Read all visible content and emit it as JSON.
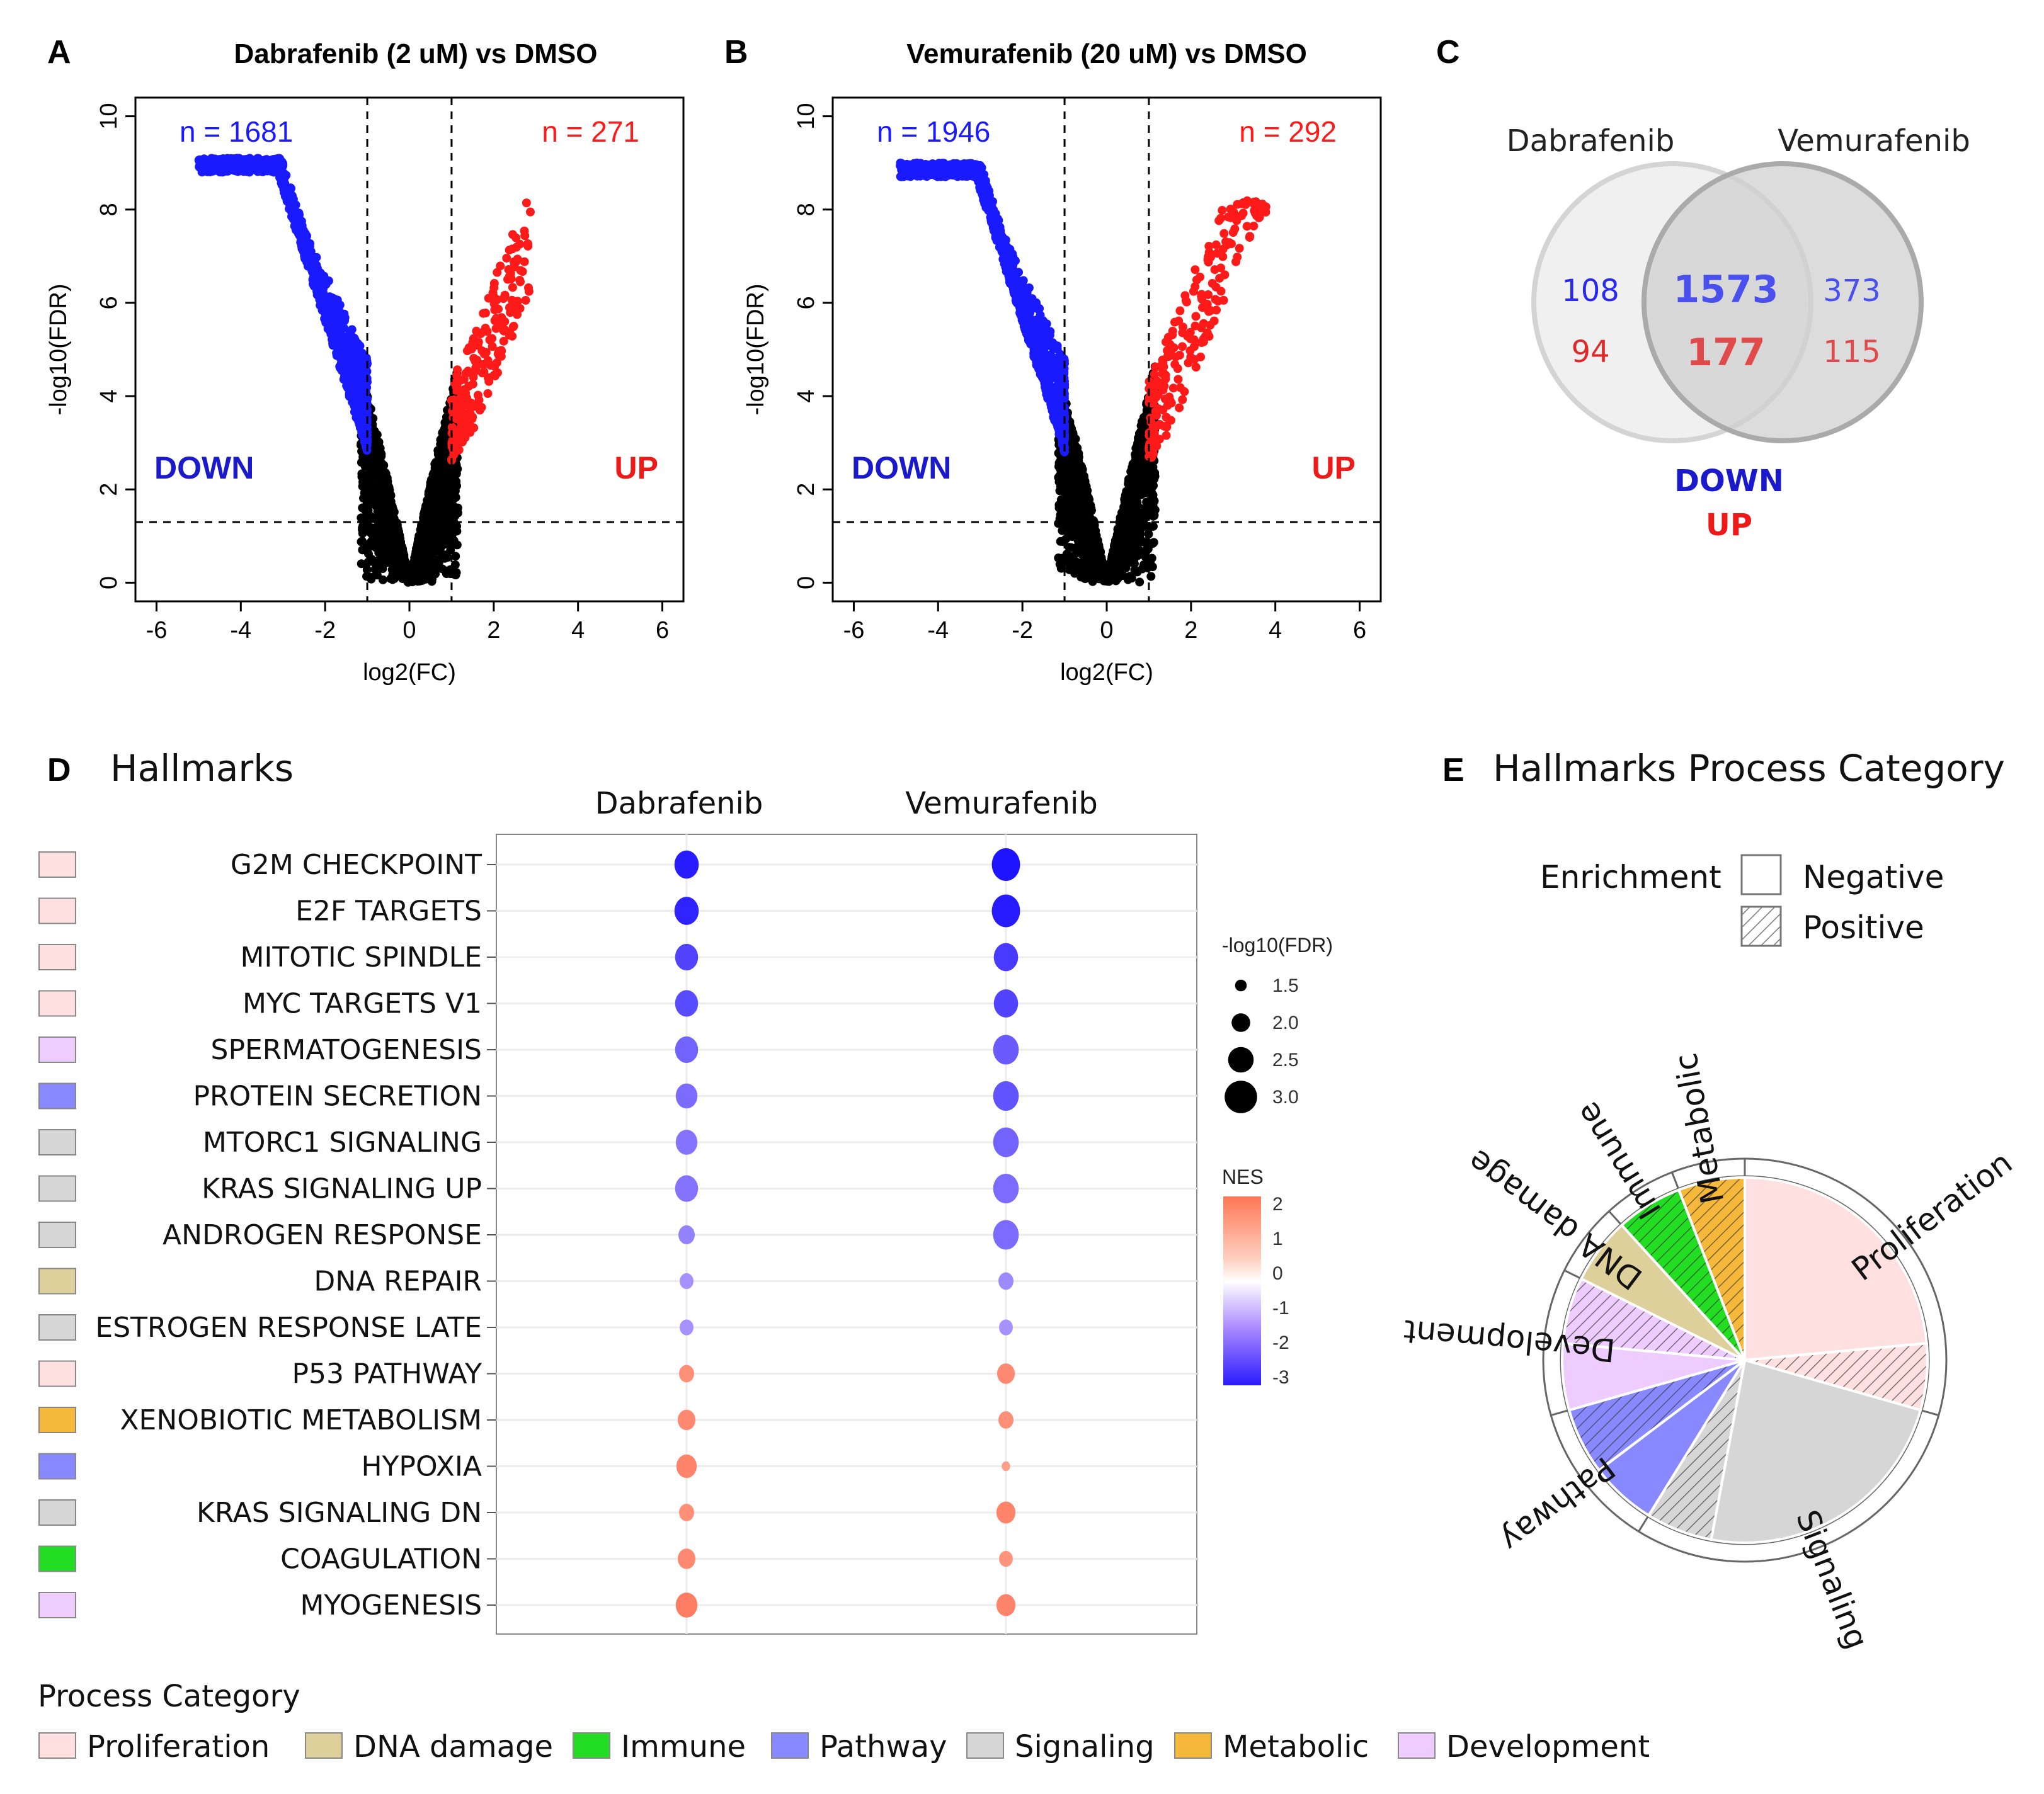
{
  "colors": {
    "down": "#1a1aff",
    "up": "#ff1a1a",
    "proliferation": "#ffe0e0",
    "dna_damage": "#ddd09a",
    "immune": "#22dd22",
    "pathway": "#8888ff",
    "signaling": "#d6d6d6",
    "metabolic": "#f5b83a",
    "development": "#eeccff"
  },
  "panels": {
    "a": {
      "letter": "A",
      "title": "Dabrafenib (2 uM) vs DMSO"
    },
    "b": {
      "letter": "B",
      "title": "Vemurafenib (20 uM) vs DMSO"
    },
    "c": {
      "letter": "C"
    },
    "d": {
      "letter": "D",
      "title": "Hallmarks"
    },
    "e": {
      "letter": "E",
      "title": "Hallmarks Process Category"
    }
  },
  "chart_data": [
    {
      "id": "volcano-dabrafenib",
      "type": "scatter",
      "title": "Dabrafenib (2 uM) vs DMSO",
      "xlabel": "log2(FC)",
      "ylabel": "-log10(FDR)",
      "xlim": [
        -6.5,
        6.5
      ],
      "ylim": [
        -0.4,
        10.4
      ],
      "xticks": [
        "-6",
        "-4",
        "-2",
        "0",
        "2",
        "4",
        "6"
      ],
      "yticks": [
        "0",
        "2",
        "4",
        "6",
        "8",
        "10"
      ],
      "thresholds": {
        "log2fc": [
          -1,
          1
        ],
        "neg_log10_fdr": 1.3
      },
      "n_down_label": "n = 1681",
      "n_up_label": "n = 271",
      "down_label": "DOWN",
      "up_label": "UP",
      "extent": {
        "down_min_x": -5.0,
        "down_max_y": 9.1,
        "up_max_x": 2.9,
        "up_max_y": 8.2
      }
    },
    {
      "id": "volcano-vemurafenib",
      "type": "scatter",
      "title": "Vemurafenib (20 uM) vs DMSO",
      "xlabel": "log2(FC)",
      "ylabel": "-log10(FDR)",
      "xlim": [
        -6.5,
        6.5
      ],
      "ylim": [
        -0.4,
        10.4
      ],
      "xticks": [
        "-6",
        "-4",
        "-2",
        "0",
        "2",
        "4",
        "6"
      ],
      "yticks": [
        "0",
        "2",
        "4",
        "6",
        "8",
        "10"
      ],
      "thresholds": {
        "log2fc": [
          -1,
          1
        ],
        "neg_log10_fdr": 1.3
      },
      "n_down_label": "n = 1946",
      "n_up_label": "n = 292",
      "down_label": "DOWN",
      "up_label": "UP",
      "extent": {
        "down_min_x": -4.9,
        "down_max_y": 9.0,
        "up_max_x": 3.8,
        "up_max_y": 8.2
      }
    },
    {
      "id": "venn",
      "type": "venn",
      "sets": [
        "Dabrafenib",
        "Vemurafenib"
      ],
      "only_a": {
        "down": "108",
        "up": "94"
      },
      "both": {
        "down": "1573",
        "up": "177"
      },
      "only_b": {
        "down": "373",
        "up": "115"
      },
      "legend": {
        "down": "DOWN",
        "up": "UP"
      }
    },
    {
      "id": "hallmarks-dotplot",
      "type": "scatter",
      "columns": [
        "Dabrafenib",
        "Vemurafenib"
      ],
      "rows": [
        {
          "name": "G2M CHECKPOINT",
          "category": "proliferation",
          "nes": [
            -3.0,
            -3.1
          ],
          "fdr": [
            2.5,
            2.8
          ]
        },
        {
          "name": "E2F TARGETS",
          "category": "proliferation",
          "nes": [
            -2.9,
            -3.0
          ],
          "fdr": [
            2.5,
            2.8
          ]
        },
        {
          "name": "MITOTIC SPINDLE",
          "category": "proliferation",
          "nes": [
            -2.5,
            -2.6
          ],
          "fdr": [
            2.4,
            2.5
          ]
        },
        {
          "name": "MYC TARGETS V1",
          "category": "proliferation",
          "nes": [
            -2.4,
            -2.5
          ],
          "fdr": [
            2.4,
            2.5
          ]
        },
        {
          "name": "SPERMATOGENESIS",
          "category": "development",
          "nes": [
            -2.1,
            -2.2
          ],
          "fdr": [
            2.4,
            2.6
          ]
        },
        {
          "name": "PROTEIN SECRETION",
          "category": "pathway",
          "nes": [
            -2.0,
            -2.3
          ],
          "fdr": [
            2.3,
            2.6
          ]
        },
        {
          "name": "MTORC1 SIGNALING",
          "category": "signaling",
          "nes": [
            -1.9,
            -2.1
          ],
          "fdr": [
            2.3,
            2.6
          ]
        },
        {
          "name": "KRAS SIGNALING UP",
          "category": "signaling",
          "nes": [
            -1.9,
            -2.0
          ],
          "fdr": [
            2.4,
            2.6
          ]
        },
        {
          "name": "ANDROGEN RESPONSE",
          "category": "signaling",
          "nes": [
            -1.7,
            -2.0
          ],
          "fdr": [
            1.9,
            2.6
          ]
        },
        {
          "name": "DNA REPAIR",
          "category": "dna_damage",
          "nes": [
            -1.5,
            -1.6
          ],
          "fdr": [
            1.7,
            1.8
          ]
        },
        {
          "name": "ESTROGEN RESPONSE LATE",
          "category": "signaling",
          "nes": [
            -1.5,
            -1.5
          ],
          "fdr": [
            1.7,
            1.7
          ]
        },
        {
          "name": "P53 PATHWAY",
          "category": "proliferation",
          "nes": [
            1.6,
            1.7
          ],
          "fdr": [
            1.8,
            2.0
          ]
        },
        {
          "name": "XENOBIOTIC METABOLISM",
          "category": "metabolic",
          "nes": [
            1.7,
            1.6
          ],
          "fdr": [
            2.0,
            1.8
          ]
        },
        {
          "name": "HYPOXIA",
          "category": "pathway",
          "nes": [
            1.8,
            1.3
          ],
          "fdr": [
            2.2,
            1.3
          ]
        },
        {
          "name": "KRAS SIGNALING DN",
          "category": "signaling",
          "nes": [
            1.6,
            1.8
          ],
          "fdr": [
            1.8,
            2.1
          ]
        },
        {
          "name": "COAGULATION",
          "category": "immune",
          "nes": [
            1.7,
            1.5
          ],
          "fdr": [
            2.0,
            1.7
          ]
        },
        {
          "name": "MYOGENESIS",
          "category": "development",
          "nes": [
            1.9,
            1.8
          ],
          "fdr": [
            2.3,
            2.1
          ]
        }
      ],
      "size_legend": {
        "title": "-log10(FDR)",
        "values": [
          "1.5",
          "2.0",
          "2.5",
          "3.0"
        ]
      },
      "color_legend": {
        "title": "NES",
        "ticks": [
          "2",
          "1",
          "0",
          "-1",
          "-2",
          "-3"
        ]
      }
    },
    {
      "id": "process-category-pie",
      "type": "pie",
      "slices": [
        {
          "category": "proliferation",
          "enrichment": "negative",
          "value": 4
        },
        {
          "category": "proliferation",
          "enrichment": "positive",
          "value": 1
        },
        {
          "category": "signaling",
          "enrichment": "negative",
          "value": 4
        },
        {
          "category": "signaling",
          "enrichment": "positive",
          "value": 1
        },
        {
          "category": "pathway",
          "enrichment": "negative",
          "value": 1
        },
        {
          "category": "pathway",
          "enrichment": "positive",
          "value": 1
        },
        {
          "category": "development",
          "enrichment": "negative",
          "value": 1
        },
        {
          "category": "development",
          "enrichment": "positive",
          "value": 1
        },
        {
          "category": "dna_damage",
          "enrichment": "negative",
          "value": 1
        },
        {
          "category": "immune",
          "enrichment": "positive",
          "value": 1
        },
        {
          "category": "metabolic",
          "enrichment": "positive",
          "value": 1
        }
      ],
      "ring_labels": [
        "Proliferation",
        "Signaling",
        "Pathway",
        "Development",
        "DNA damage",
        "Immune",
        "Metabolic"
      ],
      "enrichment_legend": {
        "title": "Enrichment",
        "negative": "Negative",
        "positive": "Positive"
      }
    }
  ],
  "process_legend": {
    "title": "Process Category",
    "items": [
      {
        "key": "proliferation",
        "label": "Proliferation"
      },
      {
        "key": "dna_damage",
        "label": "DNA damage"
      },
      {
        "key": "immune",
        "label": "Immune"
      },
      {
        "key": "pathway",
        "label": "Pathway"
      },
      {
        "key": "signaling",
        "label": "Signaling"
      },
      {
        "key": "metabolic",
        "label": "Metabolic"
      },
      {
        "key": "development",
        "label": "Development"
      }
    ]
  }
}
